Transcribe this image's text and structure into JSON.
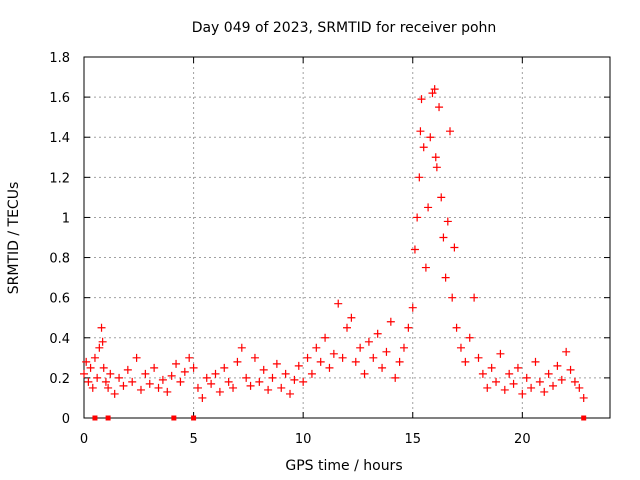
{
  "chart_data": {
    "type": "scatter",
    "title": "Day 049 of 2023, SRMTID for receiver pohn",
    "xlabel": "GPS time / hours",
    "ylabel": "SRMTID / TECUs",
    "xlim": [
      0,
      24
    ],
    "ylim": [
      0,
      1.8
    ],
    "xticks": [
      0,
      5,
      10,
      15,
      20
    ],
    "xtick_labels": [
      "0",
      "5",
      "10",
      "15",
      "20"
    ],
    "yticks": [
      0,
      0.2,
      0.4,
      0.6,
      0.8,
      1,
      1.2,
      1.4,
      1.6,
      1.8
    ],
    "ytick_labels": [
      "0",
      "0.2",
      "0.4",
      "0.6",
      "0.8",
      "1",
      "1.2",
      "1.4",
      "1.6",
      "1.8"
    ],
    "grid": true,
    "marker": "plus",
    "marker_color": "#ff0000",
    "series": [
      {
        "name": "SRMTID",
        "points": [
          [
            0.0,
            0.22
          ],
          [
            0.1,
            0.28
          ],
          [
            0.2,
            0.18
          ],
          [
            0.3,
            0.25
          ],
          [
            0.4,
            0.15
          ],
          [
            0.5,
            0.3
          ],
          [
            0.6,
            0.2
          ],
          [
            0.7,
            0.35
          ],
          [
            0.8,
            0.45
          ],
          [
            0.85,
            0.38
          ],
          [
            0.9,
            0.25
          ],
          [
            1.0,
            0.18
          ],
          [
            1.1,
            0.15
          ],
          [
            1.2,
            0.22
          ],
          [
            1.4,
            0.12
          ],
          [
            1.6,
            0.2
          ],
          [
            1.8,
            0.16
          ],
          [
            2.0,
            0.24
          ],
          [
            2.2,
            0.18
          ],
          [
            2.4,
            0.3
          ],
          [
            2.6,
            0.14
          ],
          [
            2.8,
            0.22
          ],
          [
            3.0,
            0.17
          ],
          [
            3.2,
            0.25
          ],
          [
            3.4,
            0.15
          ],
          [
            3.6,
            0.19
          ],
          [
            3.8,
            0.13
          ],
          [
            4.0,
            0.21
          ],
          [
            4.2,
            0.27
          ],
          [
            4.4,
            0.18
          ],
          [
            4.6,
            0.23
          ],
          [
            4.8,
            0.3
          ],
          [
            5.0,
            0.25
          ],
          [
            5.2,
            0.15
          ],
          [
            5.4,
            0.1
          ],
          [
            5.6,
            0.2
          ],
          [
            5.8,
            0.17
          ],
          [
            6.0,
            0.22
          ],
          [
            6.2,
            0.13
          ],
          [
            6.4,
            0.25
          ],
          [
            6.6,
            0.18
          ],
          [
            6.8,
            0.15
          ],
          [
            7.0,
            0.28
          ],
          [
            7.2,
            0.35
          ],
          [
            7.4,
            0.2
          ],
          [
            7.6,
            0.16
          ],
          [
            7.8,
            0.3
          ],
          [
            8.0,
            0.18
          ],
          [
            8.2,
            0.24
          ],
          [
            8.4,
            0.14
          ],
          [
            8.6,
            0.2
          ],
          [
            8.8,
            0.27
          ],
          [
            9.0,
            0.15
          ],
          [
            9.2,
            0.22
          ],
          [
            9.4,
            0.12
          ],
          [
            9.6,
            0.19
          ],
          [
            9.8,
            0.26
          ],
          [
            10.0,
            0.18
          ],
          [
            10.2,
            0.3
          ],
          [
            10.4,
            0.22
          ],
          [
            10.6,
            0.35
          ],
          [
            10.8,
            0.28
          ],
          [
            11.0,
            0.4
          ],
          [
            11.2,
            0.25
          ],
          [
            11.4,
            0.32
          ],
          [
            11.6,
            0.57
          ],
          [
            11.8,
            0.3
          ],
          [
            12.0,
            0.45
          ],
          [
            12.2,
            0.5
          ],
          [
            12.4,
            0.28
          ],
          [
            12.6,
            0.35
          ],
          [
            12.8,
            0.22
          ],
          [
            13.0,
            0.38
          ],
          [
            13.2,
            0.3
          ],
          [
            13.4,
            0.42
          ],
          [
            13.6,
            0.25
          ],
          [
            13.8,
            0.33
          ],
          [
            14.0,
            0.48
          ],
          [
            14.2,
            0.2
          ],
          [
            14.4,
            0.28
          ],
          [
            14.6,
            0.35
          ],
          [
            14.8,
            0.45
          ],
          [
            15.0,
            0.55
          ],
          [
            15.1,
            0.84
          ],
          [
            15.2,
            1.0
          ],
          [
            15.3,
            1.2
          ],
          [
            15.35,
            1.43
          ],
          [
            15.4,
            1.59
          ],
          [
            15.5,
            1.35
          ],
          [
            15.6,
            0.75
          ],
          [
            15.7,
            1.05
          ],
          [
            15.8,
            1.4
          ],
          [
            15.9,
            1.62
          ],
          [
            16.0,
            1.64
          ],
          [
            16.05,
            1.3
          ],
          [
            16.1,
            1.25
          ],
          [
            16.2,
            1.55
          ],
          [
            16.3,
            1.1
          ],
          [
            16.4,
            0.9
          ],
          [
            16.5,
            0.7
          ],
          [
            16.6,
            0.98
          ],
          [
            16.7,
            1.43
          ],
          [
            16.8,
            0.6
          ],
          [
            16.9,
            0.85
          ],
          [
            17.0,
            0.45
          ],
          [
            17.2,
            0.35
          ],
          [
            17.4,
            0.28
          ],
          [
            17.6,
            0.4
          ],
          [
            17.8,
            0.6
          ],
          [
            18.0,
            0.3
          ],
          [
            18.2,
            0.22
          ],
          [
            18.4,
            0.15
          ],
          [
            18.6,
            0.25
          ],
          [
            18.8,
            0.18
          ],
          [
            19.0,
            0.32
          ],
          [
            19.2,
            0.14
          ],
          [
            19.4,
            0.22
          ],
          [
            19.6,
            0.17
          ],
          [
            19.8,
            0.25
          ],
          [
            20.0,
            0.12
          ],
          [
            20.2,
            0.2
          ],
          [
            20.4,
            0.15
          ],
          [
            20.6,
            0.28
          ],
          [
            20.8,
            0.18
          ],
          [
            21.0,
            0.13
          ],
          [
            21.2,
            0.22
          ],
          [
            21.4,
            0.16
          ],
          [
            21.6,
            0.26
          ],
          [
            21.8,
            0.19
          ],
          [
            22.0,
            0.33
          ],
          [
            22.2,
            0.24
          ],
          [
            22.4,
            0.18
          ],
          [
            22.6,
            0.15
          ],
          [
            22.8,
            0.1
          ]
        ]
      },
      {
        "name": "zero-level markers",
        "marker": "square",
        "points": [
          [
            0.5,
            0
          ],
          [
            1.1,
            0
          ],
          [
            4.1,
            0
          ],
          [
            5.0,
            0
          ],
          [
            22.8,
            0
          ]
        ]
      }
    ]
  }
}
